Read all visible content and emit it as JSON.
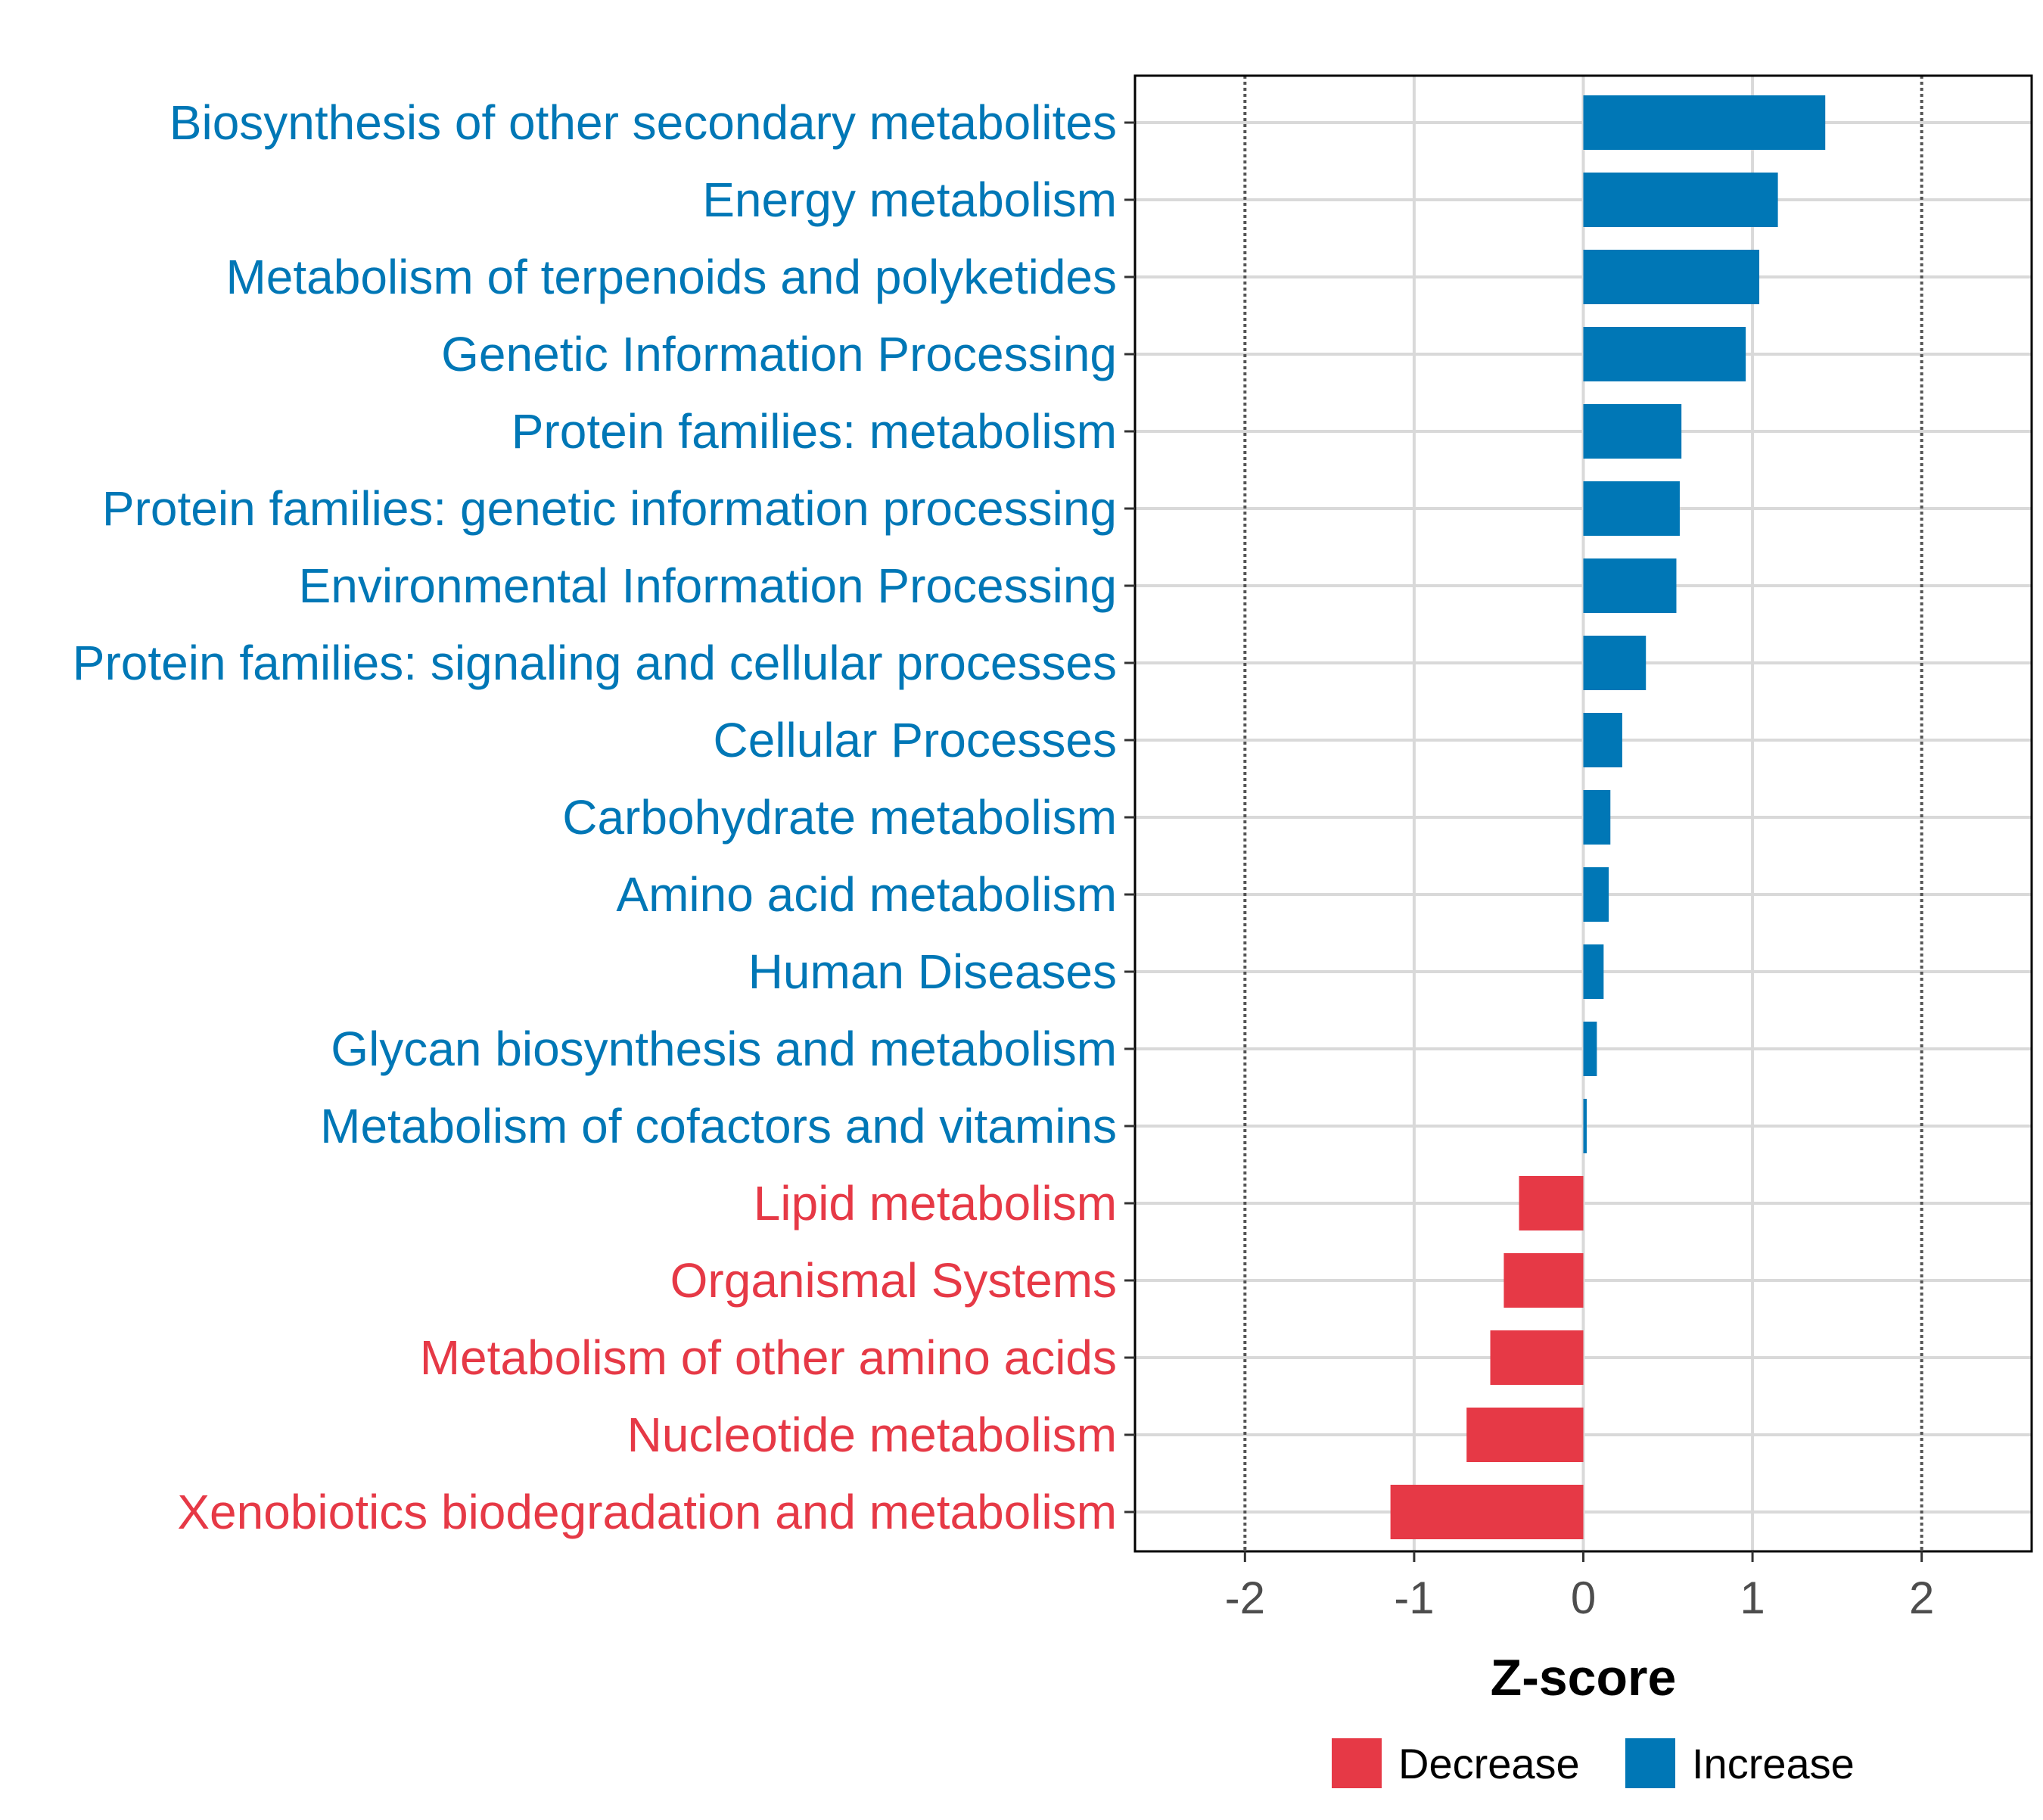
{
  "chart_data": {
    "type": "bar",
    "orientation": "horizontal",
    "title": "",
    "xlabel": "Z-score",
    "ylabel": "",
    "xlim": [
      -2.65,
      2.65
    ],
    "xticks": [
      -2,
      -1,
      0,
      1,
      2
    ],
    "xtick_labels": [
      "-2",
      "-1",
      "0",
      "1",
      "2"
    ],
    "reference_lines": [
      -2,
      2
    ],
    "grid": true,
    "legend_position": "bottom",
    "categories": [
      "Biosynthesis of other secondary metabolites",
      "Energy metabolism",
      "Metabolism of terpenoids and polyketides",
      "Genetic Information Processing",
      "Protein families: metabolism",
      "Protein families: genetic information processing",
      "Environmental Information Processing",
      "Protein families: signaling and cellular processes",
      "Cellular Processes",
      "Carbohydrate metabolism",
      "Amino acid metabolism",
      "Human Diseases",
      "Glycan biosynthesis and metabolism",
      "Metabolism of cofactors and vitamins",
      "Lipid metabolism",
      "Organismal Systems",
      "Metabolism of other amino acids",
      "Nucleotide metabolism",
      "Xenobiotics biodegradation and metabolism"
    ],
    "values": [
      1.43,
      1.15,
      1.04,
      0.96,
      0.58,
      0.57,
      0.55,
      0.37,
      0.23,
      0.16,
      0.15,
      0.12,
      0.08,
      0.02,
      -0.38,
      -0.47,
      -0.55,
      -0.69,
      -1.14
    ],
    "groups": [
      "Increase",
      "Increase",
      "Increase",
      "Increase",
      "Increase",
      "Increase",
      "Increase",
      "Increase",
      "Increase",
      "Increase",
      "Increase",
      "Increase",
      "Increase",
      "Increase",
      "Decrease",
      "Decrease",
      "Decrease",
      "Decrease",
      "Decrease"
    ],
    "legend": [
      {
        "name": "Decrease",
        "color": "#E63946"
      },
      {
        "name": "Increase",
        "color": "#0077B6"
      }
    ]
  }
}
